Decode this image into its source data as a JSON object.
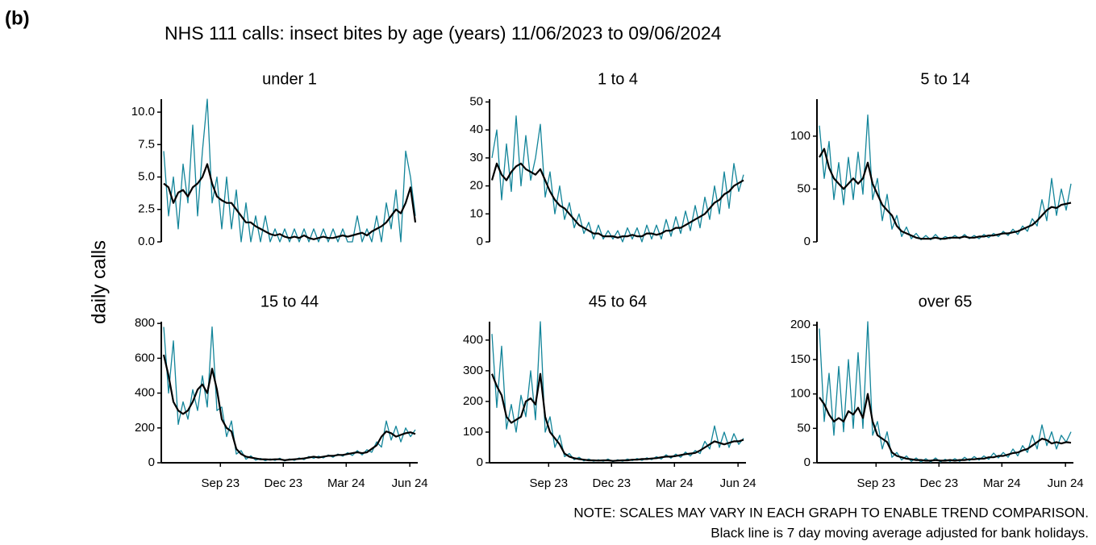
{
  "label": "(b)",
  "title": "NHS 111 calls: insect bites by age (years) 11/06/2023 to 09/06/2024",
  "y_label": "daily calls",
  "notes": [
    "NOTE: SCALES MAY VARY IN EACH GRAPH TO ENABLE TREND COMPARISON.",
    "Black line is 7 day moving average adjusted for bank holidays."
  ],
  "chart_data": [
    {
      "type": "line",
      "title": "under 1",
      "x": [
        0,
        7,
        14,
        21,
        28,
        35,
        42,
        49,
        56,
        63,
        70,
        77,
        84,
        91,
        98,
        105,
        112,
        119,
        126,
        133,
        140,
        147,
        154,
        161,
        168,
        175,
        182,
        189,
        196,
        203,
        210,
        217,
        224,
        231,
        238,
        245,
        252,
        259,
        266,
        273,
        280,
        287,
        294,
        301,
        308,
        315,
        322,
        329,
        336,
        343,
        350,
        357,
        364
      ],
      "xlim": [
        0,
        364
      ],
      "ylim": [
        0,
        11
      ],
      "yticks": [
        {
          "value": 0,
          "label": "0.0"
        },
        {
          "value": 2.5,
          "label": "2.5"
        },
        {
          "value": 5,
          "label": "5.0"
        },
        {
          "value": 7.5,
          "label": "7.5"
        },
        {
          "value": 10,
          "label": "10.0"
        }
      ],
      "series": [
        {
          "color": "#13859a",
          "values": [
            7,
            2,
            5,
            1,
            6,
            3,
            9,
            2,
            7,
            11,
            3,
            5,
            1,
            5,
            1,
            4,
            0,
            3,
            0,
            2,
            0,
            2,
            0,
            1,
            0,
            1,
            0,
            1,
            0,
            1,
            0,
            1,
            0,
            1,
            0,
            1,
            0,
            1,
            0,
            0,
            2,
            0,
            1,
            0,
            2,
            0,
            3,
            1,
            4,
            0,
            7,
            5,
            2
          ]
        },
        {
          "color": "#000000",
          "values": [
            4.5,
            4.2,
            3.0,
            3.8,
            4.0,
            3.5,
            4.2,
            4.5,
            5.0,
            6.0,
            4.5,
            3.5,
            3.2,
            3.0,
            3.0,
            2.5,
            2.0,
            1.5,
            1.5,
            1.2,
            1.0,
            0.8,
            0.6,
            0.5,
            0.6,
            0.4,
            0.3,
            0.4,
            0.3,
            0.5,
            0.3,
            0.2,
            0.3,
            0.4,
            0.3,
            0.3,
            0.4,
            0.5,
            0.4,
            0.5,
            0.6,
            0.7,
            0.5,
            0.8,
            1.0,
            1.2,
            1.5,
            2.0,
            2.5,
            2.2,
            3.0,
            4.2,
            1.5
          ]
        }
      ]
    },
    {
      "type": "line",
      "title": "1 to 4",
      "x": [
        0,
        7,
        14,
        21,
        28,
        35,
        42,
        49,
        56,
        63,
        70,
        77,
        84,
        91,
        98,
        105,
        112,
        119,
        126,
        133,
        140,
        147,
        154,
        161,
        168,
        175,
        182,
        189,
        196,
        203,
        210,
        217,
        224,
        231,
        238,
        245,
        252,
        259,
        266,
        273,
        280,
        287,
        294,
        301,
        308,
        315,
        322,
        329,
        336,
        343,
        350,
        357,
        364
      ],
      "xlim": [
        0,
        364
      ],
      "ylim": [
        0,
        51
      ],
      "yticks": [
        0,
        10,
        20,
        30,
        40,
        50
      ],
      "series": [
        {
          "color": "#13859a",
          "values": [
            30,
            40,
            15,
            35,
            18,
            45,
            20,
            38,
            22,
            30,
            42,
            16,
            25,
            10,
            20,
            8,
            14,
            5,
            10,
            3,
            7,
            1,
            6,
            1,
            4,
            1,
            4,
            0,
            5,
            1,
            5,
            0,
            6,
            1,
            6,
            1,
            8,
            2,
            9,
            3,
            11,
            4,
            13,
            5,
            16,
            8,
            20,
            10,
            25,
            12,
            28,
            18,
            24
          ]
        },
        {
          "color": "#000000",
          "values": [
            22,
            28,
            24,
            22,
            25,
            27,
            28,
            26,
            25,
            24,
            26,
            22,
            18,
            15,
            13,
            12,
            10,
            8,
            6,
            5,
            4,
            3,
            3,
            2,
            2,
            2,
            1.5,
            2,
            2,
            2.5,
            2,
            2,
            3,
            3,
            2.5,
            3,
            4,
            4,
            5,
            5,
            6,
            7,
            8,
            9,
            10,
            12,
            14,
            15,
            17,
            18,
            20,
            21,
            22
          ]
        }
      ]
    },
    {
      "type": "line",
      "title": "5 to 14",
      "x": [
        0,
        7,
        14,
        21,
        28,
        35,
        42,
        49,
        56,
        63,
        70,
        77,
        84,
        91,
        98,
        105,
        112,
        119,
        126,
        133,
        140,
        147,
        154,
        161,
        168,
        175,
        182,
        189,
        196,
        203,
        210,
        217,
        224,
        231,
        238,
        245,
        252,
        259,
        266,
        273,
        280,
        287,
        294,
        301,
        308,
        315,
        322,
        329,
        336,
        343,
        350,
        357,
        364
      ],
      "xlim": [
        0,
        364
      ],
      "ylim": [
        0,
        135
      ],
      "yticks": [
        0,
        50,
        100
      ],
      "series": [
        {
          "color": "#13859a",
          "values": [
            110,
            60,
            95,
            40,
            75,
            35,
            80,
            40,
            85,
            45,
            120,
            40,
            60,
            20,
            45,
            12,
            25,
            5,
            14,
            3,
            8,
            2,
            6,
            2,
            7,
            2,
            5,
            3,
            6,
            3,
            7,
            3,
            6,
            3,
            7,
            4,
            8,
            5,
            10,
            6,
            12,
            7,
            15,
            10,
            22,
            15,
            40,
            20,
            60,
            25,
            50,
            30,
            55
          ]
        },
        {
          "color": "#000000",
          "values": [
            80,
            88,
            70,
            60,
            55,
            50,
            55,
            60,
            55,
            60,
            75,
            55,
            45,
            35,
            30,
            25,
            15,
            10,
            8,
            6,
            4,
            3,
            3,
            3,
            4,
            3,
            3,
            4,
            4,
            4,
            5,
            4,
            4,
            5,
            5,
            6,
            6,
            7,
            8,
            8,
            9,
            10,
            12,
            14,
            16,
            20,
            25,
            30,
            33,
            32,
            35,
            36,
            37
          ]
        }
      ]
    },
    {
      "type": "line",
      "title": "15 to 44",
      "x": [
        0,
        7,
        14,
        21,
        28,
        35,
        42,
        49,
        56,
        63,
        70,
        77,
        84,
        91,
        98,
        105,
        112,
        119,
        126,
        133,
        140,
        147,
        154,
        161,
        168,
        175,
        182,
        189,
        196,
        203,
        210,
        217,
        224,
        231,
        238,
        245,
        252,
        259,
        266,
        273,
        280,
        287,
        294,
        301,
        308,
        315,
        322,
        329,
        336,
        343,
        350,
        357,
        364
      ],
      "xlim": [
        0,
        364
      ],
      "xticks": [
        {
          "value": 82,
          "label": "Sep 23"
        },
        {
          "value": 173,
          "label": "Dec 23"
        },
        {
          "value": 264,
          "label": "Mar 24"
        },
        {
          "value": 356,
          "label": "Jun 24"
        }
      ],
      "ylim": [
        0,
        810
      ],
      "yticks": [
        0,
        200,
        400,
        600,
        800
      ],
      "series": [
        {
          "color": "#13859a",
          "values": [
            780,
            400,
            700,
            220,
            350,
            250,
            420,
            300,
            500,
            320,
            780,
            300,
            320,
            150,
            240,
            50,
            70,
            20,
            40,
            15,
            25,
            12,
            22,
            14,
            26,
            10,
            22,
            14,
            28,
            18,
            36,
            26,
            38,
            28,
            45,
            32,
            50,
            38,
            58,
            42,
            70,
            45,
            75,
            60,
            120,
            90,
            240,
            130,
            210,
            120,
            200,
            150,
            190
          ]
        },
        {
          "color": "#000000",
          "values": [
            620,
            500,
            350,
            300,
            280,
            300,
            350,
            420,
            450,
            400,
            540,
            420,
            250,
            200,
            180,
            80,
            50,
            35,
            30,
            25,
            20,
            20,
            18,
            20,
            20,
            15,
            18,
            20,
            22,
            25,
            30,
            35,
            30,
            35,
            40,
            40,
            45,
            45,
            50,
            55,
            60,
            55,
            60,
            80,
            100,
            150,
            180,
            170,
            150,
            160,
            170,
            175,
            165
          ]
        }
      ]
    },
    {
      "type": "line",
      "title": "45 to 64",
      "x": [
        0,
        7,
        14,
        21,
        28,
        35,
        42,
        49,
        56,
        63,
        70,
        77,
        84,
        91,
        98,
        105,
        112,
        119,
        126,
        133,
        140,
        147,
        154,
        161,
        168,
        175,
        182,
        189,
        196,
        203,
        210,
        217,
        224,
        231,
        238,
        245,
        252,
        259,
        266,
        273,
        280,
        287,
        294,
        301,
        308,
        315,
        322,
        329,
        336,
        343,
        350,
        357,
        364
      ],
      "xlim": [
        0,
        364
      ],
      "xticks": [
        {
          "value": 82,
          "label": "Sep 23"
        },
        {
          "value": 173,
          "label": "Dec 23"
        },
        {
          "value": 264,
          "label": "Mar 24"
        },
        {
          "value": 356,
          "label": "Jun 24"
        }
      ],
      "ylim": [
        0,
        460
      ],
      "yticks": [
        0,
        100,
        200,
        300,
        400
      ],
      "series": [
        {
          "color": "#13859a",
          "values": [
            420,
            180,
            380,
            110,
            190,
            100,
            220,
            150,
            300,
            140,
            460,
            100,
            150,
            50,
            90,
            20,
            30,
            10,
            18,
            6,
            12,
            5,
            10,
            5,
            12,
            4,
            10,
            5,
            12,
            7,
            14,
            8,
            16,
            10,
            20,
            12,
            26,
            15,
            28,
            18,
            35,
            22,
            40,
            30,
            70,
            45,
            120,
            50,
            100,
            50,
            95,
            60,
            80
          ]
        },
        {
          "color": "#000000",
          "values": [
            290,
            250,
            220,
            150,
            130,
            140,
            150,
            200,
            210,
            190,
            290,
            150,
            100,
            80,
            60,
            30,
            20,
            15,
            12,
            10,
            8,
            8,
            7,
            8,
            8,
            6,
            7,
            8,
            8,
            10,
            10,
            12,
            12,
            14,
            15,
            18,
            20,
            20,
            22,
            25,
            28,
            30,
            32,
            40,
            50,
            60,
            70,
            65,
            60,
            65,
            70,
            70,
            75
          ]
        }
      ]
    },
    {
      "type": "line",
      "title": "over 65",
      "x": [
        0,
        7,
        14,
        21,
        28,
        35,
        42,
        49,
        56,
        63,
        70,
        77,
        84,
        91,
        98,
        105,
        112,
        119,
        126,
        133,
        140,
        147,
        154,
        161,
        168,
        175,
        182,
        189,
        196,
        203,
        210,
        217,
        224,
        231,
        238,
        245,
        252,
        259,
        266,
        273,
        280,
        287,
        294,
        301,
        308,
        315,
        322,
        329,
        336,
        343,
        350,
        357,
        364
      ],
      "xlim": [
        0,
        364
      ],
      "xticks": [
        {
          "value": 82,
          "label": "Sep 23"
        },
        {
          "value": 173,
          "label": "Dec 23"
        },
        {
          "value": 264,
          "label": "Mar 24"
        },
        {
          "value": 356,
          "label": "Jun 24"
        }
      ],
      "ylim": [
        0,
        205
      ],
      "yticks": [
        0,
        50,
        100,
        150,
        200
      ],
      "series": [
        {
          "color": "#13859a",
          "values": [
            195,
            60,
            130,
            40,
            140,
            45,
            150,
            50,
            160,
            50,
            205,
            40,
            60,
            20,
            45,
            8,
            15,
            4,
            10,
            2,
            7,
            1,
            6,
            1,
            7,
            1,
            5,
            2,
            6,
            2,
            8,
            3,
            9,
            4,
            10,
            5,
            14,
            7,
            15,
            8,
            20,
            10,
            25,
            15,
            40,
            20,
            55,
            25,
            45,
            20,
            40,
            30,
            45
          ]
        },
        {
          "color": "#000000",
          "values": [
            95,
            85,
            70,
            60,
            65,
            60,
            75,
            70,
            80,
            65,
            100,
            60,
            40,
            35,
            30,
            15,
            10,
            8,
            6,
            5,
            4,
            4,
            3,
            3,
            4,
            3,
            3,
            4,
            3,
            4,
            4,
            5,
            5,
            6,
            6,
            8,
            8,
            10,
            10,
            12,
            14,
            15,
            18,
            20,
            25,
            30,
            35,
            33,
            28,
            30,
            28,
            30,
            29
          ]
        }
      ]
    }
  ]
}
